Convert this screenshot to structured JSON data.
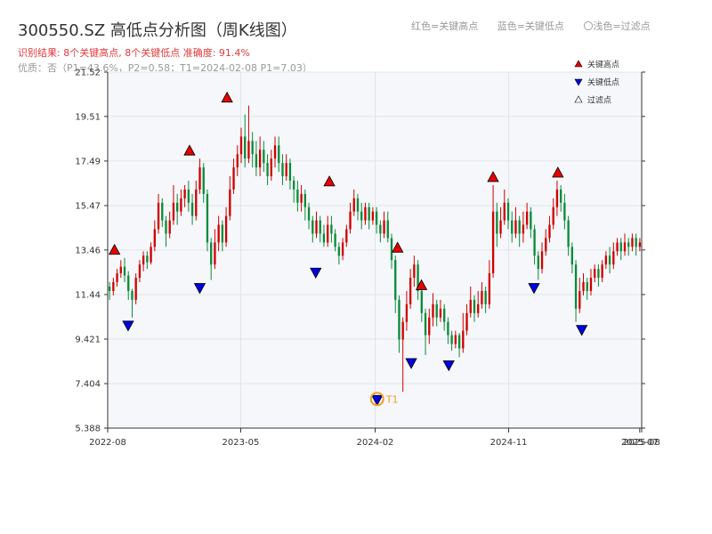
{
  "title": "300550.SZ 高低点分析图（周K线图）",
  "subtitle_result": "识别结果: 8个关键高点, 8个关键低点  准确度: 91.4%",
  "subtitle_quality": "优质：否（P1=43.6%，P2=0.58；T1=2024-02-08 P1=7.03）",
  "header_legend": {
    "red": "红色=关键高点",
    "blue": "蓝色=关键低点",
    "light": "〇浅色=过滤点"
  },
  "colors": {
    "up": "#d00000",
    "down": "#0a8a3a",
    "high_marker": "#e60000",
    "low_marker": "#0000e0",
    "t1": "#f0a020",
    "plot_bg": "#f5f7fa",
    "grid": "#e0e4ea"
  },
  "chart_data": {
    "type": "candlestick",
    "title": "300550.SZ 高低点分析图（周K线图）",
    "x_tick_labels": [
      "2022-08",
      "2023-05",
      "2024-02",
      "2024-11",
      "2025-07",
      "2025-08"
    ],
    "y_ticks": [
      "5.388",
      "7.404",
      "9.421",
      "11.44",
      "13.46",
      "15.47",
      "17.49",
      "19.51",
      "21.52"
    ],
    "ylim": [
      5.388,
      21.52
    ],
    "x_range": [
      "2022-08-01",
      "2025-08-01"
    ],
    "grid": true,
    "legend_position": "top-right",
    "legend": [
      {
        "label": "关键高点",
        "symbol": "triangle-up",
        "color": "#e60000"
      },
      {
        "label": "关键低点",
        "symbol": "triangle-down",
        "color": "#0000e0"
      },
      {
        "label": "过滤点",
        "symbol": "triangle-up-outline",
        "color": "#ffffff"
      }
    ],
    "key_highs": [
      {
        "date": "2022-08-15",
        "value": 13.1
      },
      {
        "date": "2023-01-16",
        "value": 17.6
      },
      {
        "date": "2023-04-03",
        "value": 20.0
      },
      {
        "date": "2023-10-30",
        "value": 16.2
      },
      {
        "date": "2024-03-18",
        "value": 13.2
      },
      {
        "date": "2024-05-06",
        "value": 11.5
      },
      {
        "date": "2024-09-30",
        "value": 16.4
      },
      {
        "date": "2025-02-10",
        "value": 16.6
      }
    ],
    "key_lows": [
      {
        "date": "2022-09-12",
        "value": 10.4
      },
      {
        "date": "2023-02-06",
        "value": 12.1
      },
      {
        "date": "2023-10-02",
        "value": 12.8
      },
      {
        "date": "2024-02-05",
        "value": 7.03
      },
      {
        "date": "2024-04-15",
        "value": 8.7
      },
      {
        "date": "2024-07-01",
        "value": 8.6
      },
      {
        "date": "2024-12-23",
        "value": 12.1
      },
      {
        "date": "2025-03-31",
        "value": 10.2
      }
    ],
    "t1_point": {
      "label": "T1",
      "date": "2024-02-05",
      "value": 7.03
    },
    "weekly_candles": [
      [
        11.8,
        11.6,
        11.2,
        12.0
      ],
      [
        11.6,
        12.0,
        11.4,
        12.2
      ],
      [
        12.0,
        12.4,
        11.8,
        12.6
      ],
      [
        12.4,
        12.7,
        12.2,
        13.0
      ],
      [
        12.7,
        12.3,
        12.0,
        13.1
      ],
      [
        12.3,
        11.6,
        11.2,
        12.5
      ],
      [
        11.6,
        11.2,
        10.4,
        11.7
      ],
      [
        11.2,
        12.2,
        11.0,
        12.4
      ],
      [
        12.2,
        12.8,
        12.0,
        13.0
      ],
      [
        12.8,
        13.2,
        12.5,
        13.4
      ],
      [
        13.2,
        12.9,
        12.6,
        13.4
      ],
      [
        12.9,
        13.6,
        12.8,
        13.8
      ],
      [
        13.6,
        14.4,
        13.4,
        14.8
      ],
      [
        14.4,
        15.6,
        14.2,
        16.0
      ],
      [
        15.6,
        14.8,
        14.5,
        15.8
      ],
      [
        14.8,
        14.2,
        13.6,
        15.0
      ],
      [
        14.2,
        14.8,
        14.0,
        15.2
      ],
      [
        14.8,
        15.6,
        14.6,
        16.4
      ],
      [
        15.6,
        15.2,
        14.6,
        16.0
      ],
      [
        15.2,
        15.8,
        15.0,
        16.2
      ],
      [
        15.8,
        16.2,
        15.4,
        16.4
      ],
      [
        16.2,
        15.6,
        15.2,
        16.6
      ],
      [
        15.6,
        15.0,
        14.6,
        16.0
      ],
      [
        15.0,
        16.2,
        14.8,
        16.6
      ],
      [
        16.2,
        17.2,
        16.0,
        17.6
      ],
      [
        17.2,
        16.0,
        15.6,
        17.4
      ],
      [
        16.0,
        13.8,
        13.4,
        16.2
      ],
      [
        13.8,
        12.8,
        12.1,
        14.0
      ],
      [
        12.8,
        13.8,
        12.6,
        14.4
      ],
      [
        13.8,
        14.6,
        13.4,
        15.0
      ],
      [
        14.6,
        13.8,
        13.4,
        14.8
      ],
      [
        13.8,
        15.0,
        13.6,
        15.4
      ],
      [
        15.0,
        16.2,
        14.8,
        16.8
      ],
      [
        16.2,
        17.2,
        16.0,
        17.6
      ],
      [
        17.2,
        17.8,
        16.8,
        18.2
      ],
      [
        17.8,
        18.6,
        17.4,
        19.0
      ],
      [
        18.6,
        17.6,
        17.2,
        19.6
      ],
      [
        17.6,
        18.4,
        17.4,
        20.0
      ],
      [
        18.4,
        17.8,
        17.2,
        18.8
      ],
      [
        17.8,
        17.2,
        16.8,
        18.4
      ],
      [
        17.2,
        18.0,
        16.8,
        18.6
      ],
      [
        18.0,
        17.4,
        17.0,
        18.4
      ],
      [
        17.4,
        16.8,
        16.4,
        17.8
      ],
      [
        16.8,
        17.6,
        16.6,
        18.0
      ],
      [
        17.6,
        18.2,
        17.2,
        18.6
      ],
      [
        18.2,
        17.4,
        17.0,
        18.6
      ],
      [
        17.4,
        16.8,
        16.4,
        17.8
      ],
      [
        16.8,
        17.4,
        16.6,
        17.8
      ],
      [
        17.4,
        16.6,
        16.2,
        17.6
      ],
      [
        16.6,
        16.2,
        15.6,
        16.8
      ],
      [
        16.2,
        15.6,
        15.2,
        16.6
      ],
      [
        15.6,
        16.0,
        15.2,
        16.4
      ],
      [
        16.0,
        15.4,
        14.8,
        16.2
      ],
      [
        15.4,
        14.8,
        14.4,
        15.6
      ],
      [
        14.8,
        14.2,
        13.8,
        15.0
      ],
      [
        14.2,
        14.8,
        14.0,
        15.2
      ],
      [
        14.8,
        14.2,
        13.8,
        15.0
      ],
      [
        14.2,
        13.8,
        13.6,
        14.6
      ],
      [
        13.8,
        14.6,
        13.6,
        15.0
      ],
      [
        14.6,
        14.2,
        13.8,
        15.0
      ],
      [
        14.2,
        13.6,
        13.4,
        14.4
      ],
      [
        13.6,
        13.2,
        12.8,
        13.8
      ],
      [
        13.2,
        13.8,
        13.0,
        14.0
      ],
      [
        13.8,
        14.4,
        13.6,
        14.6
      ],
      [
        14.4,
        15.2,
        14.2,
        15.6
      ],
      [
        15.2,
        15.8,
        15.0,
        16.2
      ],
      [
        15.8,
        15.2,
        14.8,
        16.0
      ],
      [
        15.2,
        14.8,
        14.4,
        15.6
      ],
      [
        14.8,
        15.4,
        14.6,
        15.6
      ],
      [
        15.4,
        14.8,
        14.4,
        15.6
      ],
      [
        14.8,
        15.2,
        14.6,
        15.4
      ],
      [
        15.2,
        14.6,
        14.2,
        15.4
      ],
      [
        14.6,
        14.2,
        13.8,
        14.8
      ],
      [
        14.2,
        14.8,
        14.0,
        15.2
      ],
      [
        14.8,
        14.0,
        13.8,
        15.2
      ],
      [
        14.0,
        13.0,
        12.6,
        14.2
      ],
      [
        13.0,
        11.2,
        10.6,
        13.2
      ],
      [
        11.2,
        9.4,
        8.8,
        11.4
      ],
      [
        9.4,
        10.2,
        7.03,
        10.4
      ],
      [
        10.2,
        11.0,
        9.8,
        11.6
      ],
      [
        11.0,
        12.2,
        10.8,
        12.6
      ],
      [
        12.2,
        12.8,
        11.8,
        13.2
      ],
      [
        12.8,
        11.6,
        11.2,
        13.0
      ],
      [
        11.6,
        10.6,
        10.2,
        11.8
      ],
      [
        10.6,
        9.6,
        8.7,
        10.8
      ],
      [
        9.6,
        10.4,
        9.2,
        10.8
      ],
      [
        10.4,
        11.0,
        10.0,
        11.5
      ],
      [
        11.0,
        10.4,
        10.0,
        11.2
      ],
      [
        10.4,
        10.8,
        10.2,
        11.2
      ],
      [
        10.8,
        10.2,
        9.8,
        11.0
      ],
      [
        10.2,
        9.6,
        9.2,
        10.4
      ],
      [
        9.6,
        9.2,
        8.9,
        9.8
      ],
      [
        9.2,
        9.6,
        9.0,
        9.8
      ],
      [
        9.6,
        9.0,
        8.6,
        9.7
      ],
      [
        9.0,
        9.8,
        8.8,
        10.6
      ],
      [
        9.8,
        10.6,
        9.6,
        11.0
      ],
      [
        10.6,
        11.2,
        10.4,
        11.8
      ],
      [
        11.2,
        10.6,
        10.2,
        11.4
      ],
      [
        10.6,
        11.0,
        10.4,
        11.6
      ],
      [
        11.0,
        11.6,
        10.8,
        12.0
      ],
      [
        11.6,
        11.0,
        10.6,
        11.8
      ],
      [
        11.0,
        12.4,
        10.8,
        13.0
      ],
      [
        12.4,
        15.2,
        12.2,
        16.4
      ],
      [
        15.2,
        14.2,
        13.6,
        15.6
      ],
      [
        14.2,
        14.8,
        14.0,
        15.4
      ],
      [
        14.8,
        15.6,
        14.6,
        16.2
      ],
      [
        15.6,
        14.8,
        14.4,
        15.8
      ],
      [
        14.8,
        14.2,
        13.8,
        15.2
      ],
      [
        14.2,
        14.8,
        14.0,
        15.4
      ],
      [
        14.8,
        14.2,
        13.6,
        15.0
      ],
      [
        14.2,
        14.6,
        13.8,
        15.2
      ],
      [
        14.6,
        15.2,
        14.4,
        15.6
      ],
      [
        15.2,
        14.4,
        14.0,
        15.4
      ],
      [
        14.4,
        13.2,
        12.8,
        14.6
      ],
      [
        13.2,
        12.6,
        12.1,
        13.4
      ],
      [
        12.6,
        13.4,
        12.4,
        13.8
      ],
      [
        13.4,
        14.0,
        13.2,
        14.4
      ],
      [
        14.0,
        14.6,
        13.8,
        15.0
      ],
      [
        14.6,
        15.4,
        14.4,
        15.8
      ],
      [
        15.4,
        16.2,
        15.0,
        16.6
      ],
      [
        16.2,
        15.6,
        15.2,
        16.4
      ],
      [
        15.6,
        14.8,
        14.4,
        16.0
      ],
      [
        14.8,
        13.6,
        13.2,
        15.0
      ],
      [
        13.6,
        12.8,
        12.4,
        13.8
      ],
      [
        12.8,
        10.8,
        10.2,
        13.0
      ],
      [
        10.8,
        11.6,
        10.6,
        12.2
      ],
      [
        11.6,
        12.0,
        11.4,
        12.4
      ],
      [
        12.0,
        11.6,
        11.2,
        12.2
      ],
      [
        11.6,
        12.2,
        11.4,
        12.6
      ],
      [
        12.2,
        12.6,
        12.0,
        12.8
      ],
      [
        12.6,
        12.2,
        11.8,
        12.8
      ],
      [
        12.2,
        12.8,
        12.0,
        13.0
      ],
      [
        12.8,
        13.2,
        12.6,
        13.4
      ],
      [
        13.2,
        12.8,
        12.4,
        13.6
      ],
      [
        12.8,
        13.4,
        12.6,
        13.8
      ],
      [
        13.4,
        13.8,
        13.2,
        14.0
      ],
      [
        13.8,
        13.4,
        13.0,
        14.0
      ],
      [
        13.4,
        13.8,
        13.2,
        14.2
      ],
      [
        13.8,
        13.6,
        13.2,
        14.0
      ],
      [
        13.6,
        14.0,
        13.4,
        14.2
      ],
      [
        14.0,
        13.6,
        13.2,
        14.2
      ],
      [
        13.6,
        13.8,
        13.4,
        14.0
      ]
    ]
  },
  "annotation_t1_label": "T1"
}
